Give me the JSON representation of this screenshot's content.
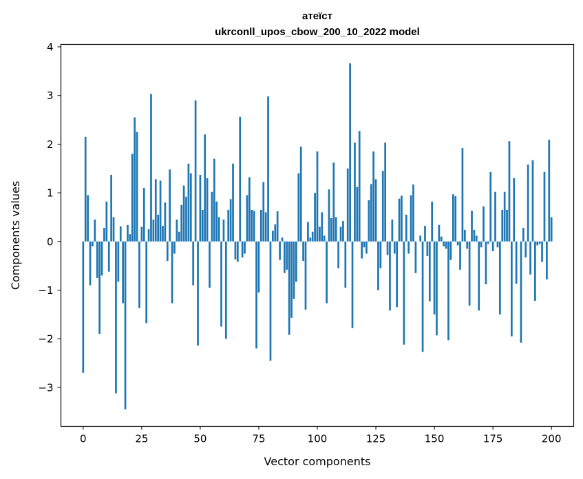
{
  "chart_data": {
    "type": "bar",
    "title": "атеїст",
    "subtitle": "ukrconll_upos_cbow_200_10_2022 model",
    "xlabel": "Vector components",
    "ylabel": "Components values",
    "bar_color": "#1f77b4",
    "xlim": [
      -9.5,
      209.5
    ],
    "ylim": [
      -3.8,
      4.05
    ],
    "x_ticks": [
      0,
      25,
      50,
      75,
      100,
      125,
      150,
      175,
      200
    ],
    "x_tick_labels": [
      "0",
      "25",
      "50",
      "75",
      "100",
      "125",
      "150",
      "175",
      "200"
    ],
    "y_ticks": [
      -3,
      -2,
      -1,
      0,
      1,
      2,
      3,
      4
    ],
    "y_tick_labels": [
      "−3",
      "−2",
      "−1",
      "0",
      "1",
      "2",
      "3",
      "4"
    ],
    "grid": false,
    "values": [
      -2.7,
      2.15,
      0.95,
      -0.9,
      -0.1,
      0.45,
      -0.75,
      -1.9,
      -0.7,
      0.28,
      0.82,
      -0.62,
      1.37,
      0.5,
      -3.12,
      -0.83,
      0.31,
      -1.27,
      -3.45,
      0.34,
      0.15,
      1.8,
      2.55,
      2.25,
      -1.37,
      0.3,
      1.1,
      -1.68,
      0.25,
      3.03,
      0.45,
      1.28,
      0.55,
      1.25,
      0.32,
      0.8,
      -0.4,
      1.48,
      -1.27,
      -0.25,
      0.45,
      0.2,
      0.75,
      1.15,
      0.92,
      1.6,
      1.4,
      -0.9,
      2.9,
      -2.14,
      1.37,
      0.65,
      2.2,
      1.3,
      -0.95,
      1.02,
      1.7,
      0.82,
      0.5,
      -1.75,
      0.45,
      -2.0,
      0.65,
      0.87,
      1.6,
      -0.37,
      -0.42,
      2.56,
      -0.33,
      -0.25,
      0.95,
      1.32,
      0.65,
      0.63,
      -2.2,
      -1.05,
      0.65,
      1.22,
      0.6,
      2.98,
      -2.45,
      0.22,
      0.35,
      0.62,
      -0.38,
      0.08,
      -0.65,
      -0.58,
      -1.92,
      -1.57,
      -1.18,
      -0.83,
      1.4,
      1.95,
      -0.4,
      -1.4,
      0.4,
      0.08,
      0.2,
      1.0,
      1.85,
      0.3,
      0.6,
      0.12,
      -1.27,
      1.07,
      0.48,
      1.62,
      0.5,
      -0.55,
      0.3,
      0.42,
      -0.95,
      1.5,
      3.66,
      -1.78,
      2.03,
      1.12,
      2.27,
      -0.35,
      -0.12,
      -0.25,
      0.85,
      1.18,
      1.85,
      1.28,
      -1.0,
      -0.55,
      1.45,
      2.03,
      -0.28,
      -1.42,
      0.45,
      -0.25,
      -1.35,
      0.88,
      0.94,
      -2.12,
      0.55,
      -0.25,
      0.95,
      1.17,
      -0.65,
      0.0,
      0.12,
      -2.27,
      0.32,
      -0.3,
      -1.23,
      0.82,
      -1.5,
      -1.93,
      0.34,
      0.1,
      -0.1,
      -0.15,
      -2.03,
      -0.38,
      0.97,
      0.93,
      -0.08,
      -0.58,
      1.92,
      0.24,
      -0.15,
      -1.32,
      0.63,
      0.24,
      0.12,
      -1.42,
      -0.12,
      0.72,
      -0.88,
      -0.05,
      1.43,
      -0.2,
      1.02,
      -0.12,
      -1.5,
      0.65,
      1.02,
      0.65,
      2.06,
      -1.95,
      1.3,
      -0.87,
      0.0,
      -2.08,
      0.28,
      -0.33,
      1.58,
      -0.68,
      1.67,
      -1.22,
      -0.08,
      -0.05,
      -0.42,
      1.43,
      -0.78,
      2.09,
      0.5
    ]
  }
}
